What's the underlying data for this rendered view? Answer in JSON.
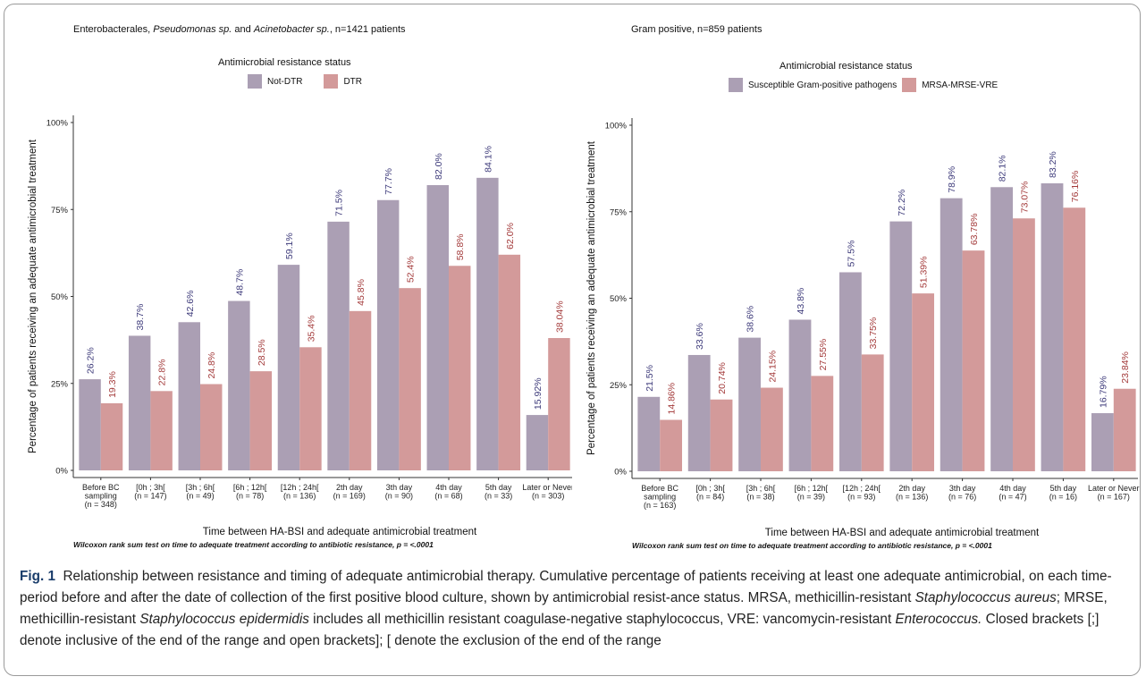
{
  "panels": [
    {
      "title": {
        "prefix": "Enterobacterales, ",
        "italic1": "Pseudomonas sp.",
        "mid": " and ",
        "italic2": "Acinetobacter sp.",
        "suffix": ", n=1421 patients"
      },
      "legend_title": "Antimicrobial resistance status",
      "note": "Wilcoxon rank sum test on time to adequate treatment according to antibiotic resistance, p = <.0001"
    },
    {
      "title": {
        "prefix": "Gram positive, n=859 patients",
        "italic1": "",
        "mid": "",
        "italic2": "",
        "suffix": ""
      },
      "legend_title": "Antimicrobial resistance status",
      "note": "Wilcoxon rank sum test on time to adequate treatment according to antibiotic resistance, p = <.0001"
    }
  ],
  "chart_data": [
    {
      "type": "bar",
      "ylabel": "Percentage of patients receiving an adequate antimicrobial treatment",
      "xlabel": "Time between HA-BSI and adequate antimicrobial treatment",
      "ylim": [
        0,
        100
      ],
      "yticks": [
        "0%",
        "25%",
        "50%",
        "75%",
        "100%"
      ],
      "legend_position": "top",
      "categories": [
        [
          "Before BC",
          "sampling",
          "(n = 348)"
        ],
        [
          "[0h ; 3h[",
          "(n = 147)"
        ],
        [
          "[3h ; 6h[",
          "(n = 49)"
        ],
        [
          "[6h ; 12h[",
          "(n = 78)"
        ],
        [
          "[12h ; 24h[",
          "(n = 136)"
        ],
        [
          "2th day",
          "(n = 169)"
        ],
        [
          "3th day",
          "(n = 90)"
        ],
        [
          "4th day",
          "(n = 68)"
        ],
        [
          "5th day",
          "(n = 33)"
        ],
        [
          "Later or Never",
          "(n = 303)"
        ]
      ],
      "series": [
        {
          "name": "Not-DTR",
          "color": "#ab9fb4",
          "label_color": "#3d3a7a",
          "values": [
            26.2,
            38.7,
            42.6,
            48.7,
            59.1,
            71.5,
            77.7,
            82.0,
            84.1,
            15.92
          ],
          "labels": [
            "26.2%",
            "38.7%",
            "42.6%",
            "48.7%",
            "59.1%",
            "71.5%",
            "77.7%",
            "82.0%",
            "84.1%",
            "15.92%"
          ]
        },
        {
          "name": "DTR",
          "color": "#d39a9a",
          "label_color": "#a33a3a",
          "values": [
            19.3,
            22.8,
            24.8,
            28.5,
            35.4,
            45.8,
            52.4,
            58.8,
            62.0,
            38.04
          ],
          "labels": [
            "19.3%",
            "22.8%",
            "24.8%",
            "28.5%",
            "35.4%",
            "45.8%",
            "52.4%",
            "58.8%",
            "62.0%",
            "38.04%"
          ]
        }
      ]
    },
    {
      "type": "bar",
      "ylabel": "Percentage of patients receiving an adequate antimicrobial treatment",
      "xlabel": "Time between HA-BSI and adequate antimicrobial treatment",
      "ylim": [
        0,
        100
      ],
      "yticks": [
        "0%",
        "25%",
        "50%",
        "75%",
        "100%"
      ],
      "legend_position": "top",
      "categories": [
        [
          "Before BC",
          "sampling",
          "(n = 163)"
        ],
        [
          "[0h ; 3h[",
          "(n = 84)"
        ],
        [
          "[3h ; 6h[",
          "(n = 38)"
        ],
        [
          "[6h ; 12h[",
          "(n = 39)"
        ],
        [
          "[12h ; 24h[",
          "(n = 93)"
        ],
        [
          "2th day",
          "(n = 136)"
        ],
        [
          "3th day",
          "(n = 76)"
        ],
        [
          "4th day",
          "(n = 47)"
        ],
        [
          "5th day",
          "(n = 16)"
        ],
        [
          "Later or Never",
          "(n = 167)"
        ]
      ],
      "series": [
        {
          "name": "Susceptible Gram-positive pathogens",
          "color": "#ab9fb4",
          "label_color": "#3d3a7a",
          "values": [
            21.5,
            33.6,
            38.6,
            43.8,
            57.5,
            72.2,
            78.9,
            82.1,
            83.2,
            16.79
          ],
          "labels": [
            "21.5%",
            "33.6%",
            "38.6%",
            "43.8%",
            "57.5%",
            "72.2%",
            "78.9%",
            "82.1%",
            "83.2%",
            "16.79%"
          ]
        },
        {
          "name": "MRSA-MRSE-VRE",
          "color": "#d39a9a",
          "label_color": "#a33a3a",
          "values": [
            14.86,
            20.74,
            24.15,
            27.55,
            33.75,
            51.39,
            63.78,
            73.07,
            76.16,
            23.84
          ],
          "labels": [
            "14.86%",
            "20.74%",
            "24.15%",
            "27.55%",
            "33.75%",
            "51.39%",
            "63.78%",
            "73.07%",
            "76.16%",
            "23.84%"
          ]
        }
      ]
    }
  ],
  "caption": {
    "fig_label": "Fig. 1",
    "p1": "Relationship between resistance and timing of adequate antimicrobial therapy. Cumulative percentage of patients receiving at least one adequate antimicrobial, on each time-period before and after the date of collection of the first positive blood culture, shown by antimicrobial resist-ance status. MRSA, methicillin-resistant ",
    "i1": "Staphylococcus aureus",
    "p2": "; MRSE, methicillin-resistant ",
    "i2": "Staphylococcus epidermidis",
    "p3": " includes all methicillin resistant coagulase-negative staphylococcus, VRE: vancomycin-resistant ",
    "i3": "Enterococcus.",
    "p4": " Closed brackets [;] denote inclusive of the end of the range and open brackets]; [ denote the exclusion of the end of the range"
  }
}
